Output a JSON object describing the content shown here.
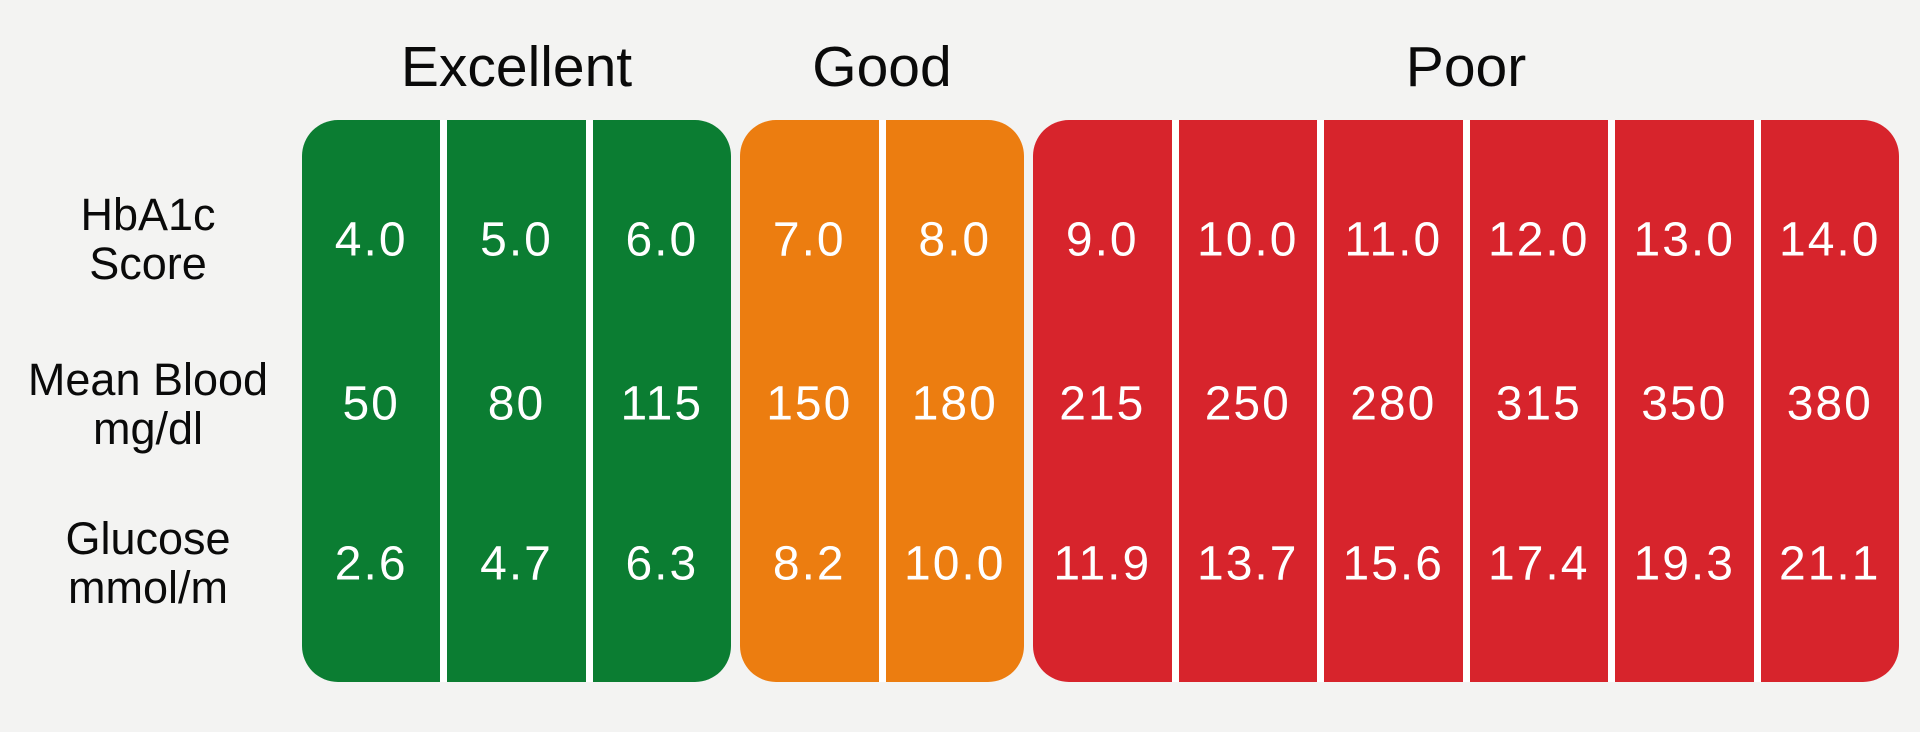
{
  "colors": {
    "background": "#f3f3f2",
    "divider": "#ffffff",
    "header_text": "#0a0a0a",
    "label_text": "#0a0a0a",
    "value_text": "#ffffff",
    "excellent": "#0b7d32",
    "good": "#ec7d10",
    "poor": "#d7242c"
  },
  "row_labels": [
    {
      "line1": "HbA1c",
      "line2": "Score"
    },
    {
      "line1": "Mean Blood",
      "line2": "mg/dl"
    },
    {
      "line1": "Glucose",
      "line2": "mmol/m"
    }
  ],
  "groups": [
    {
      "label": "Excellent",
      "color": "#0b7d32",
      "columns": [
        {
          "hba1c": "4.0",
          "mean_blood": "50",
          "glucose": "2.6"
        },
        {
          "hba1c": "5.0",
          "mean_blood": "80",
          "glucose": "4.7"
        },
        {
          "hba1c": "6.0",
          "mean_blood": "115",
          "glucose": "6.3"
        }
      ]
    },
    {
      "label": "Good",
      "color": "#ec7d10",
      "columns": [
        {
          "hba1c": "7.0",
          "mean_blood": "150",
          "glucose": "8.2"
        },
        {
          "hba1c": "8.0",
          "mean_blood": "180",
          "glucose": "10.0"
        }
      ]
    },
    {
      "label": "Poor",
      "color": "#d7242c",
      "columns": [
        {
          "hba1c": "9.0",
          "mean_blood": "215",
          "glucose": "11.9"
        },
        {
          "hba1c": "10.0",
          "mean_blood": "250",
          "glucose": "13.7"
        },
        {
          "hba1c": "11.0",
          "mean_blood": "280",
          "glucose": "15.6"
        },
        {
          "hba1c": "12.0",
          "mean_blood": "315",
          "glucose": "17.4"
        },
        {
          "hba1c": "13.0",
          "mean_blood": "350",
          "glucose": "19.3"
        },
        {
          "hba1c": "14.0",
          "mean_blood": "380",
          "glucose": "21.1"
        }
      ]
    }
  ],
  "chart_data": {
    "type": "table",
    "title": "",
    "row_headers": [
      "HbA1c Score",
      "Mean Blood mg/dl",
      "Glucose mmol/m"
    ],
    "column_groups": [
      {
        "rating": "Excellent",
        "color": "#0b7d32",
        "hba1c": [
          4.0,
          5.0,
          6.0
        ],
        "mean_blood_mg_dl": [
          50,
          80,
          115
        ],
        "glucose_mmol": [
          2.6,
          4.7,
          6.3
        ]
      },
      {
        "rating": "Good",
        "color": "#ec7d10",
        "hba1c": [
          7.0,
          8.0
        ],
        "mean_blood_mg_dl": [
          150,
          180
        ],
        "glucose_mmol": [
          8.2,
          10.0
        ]
      },
      {
        "rating": "Poor",
        "color": "#d7242c",
        "hba1c": [
          9.0,
          10.0,
          11.0,
          12.0,
          13.0,
          14.0
        ],
        "mean_blood_mg_dl": [
          215,
          250,
          280,
          315,
          350,
          380
        ],
        "glucose_mmol": [
          11.9,
          13.7,
          15.6,
          17.4,
          19.3,
          21.1
        ]
      }
    ],
    "legend_position": "top",
    "grid": false
  }
}
